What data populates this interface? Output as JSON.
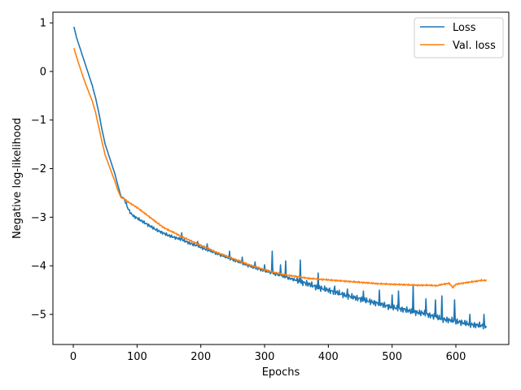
{
  "chart_data": {
    "type": "line",
    "title": "",
    "xlabel": "Epochs",
    "ylabel": "Negative log-likelihood",
    "xlim": [
      -32,
      683
    ],
    "ylim": [
      -5.62,
      1.22
    ],
    "xticks": [
      0,
      100,
      200,
      300,
      400,
      500,
      600
    ],
    "yticks": [
      1,
      0,
      -1,
      -2,
      -3,
      -4,
      -5
    ],
    "grid": false,
    "legend_position": "top-right",
    "series": [
      {
        "name": "Loss",
        "color": "#1f77b4",
        "x": [
          1,
          5,
          10,
          15,
          20,
          25,
          30,
          35,
          40,
          45,
          50,
          55,
          60,
          65,
          70,
          75,
          78,
          80,
          85,
          90,
          95,
          100,
          110,
          120,
          130,
          140,
          150,
          160,
          170,
          180,
          190,
          200,
          210,
          220,
          230,
          240,
          250,
          260,
          270,
          280,
          290,
          300,
          310,
          320,
          330,
          340,
          350,
          360,
          370,
          380,
          390,
          400,
          410,
          420,
          430,
          440,
          450,
          460,
          470,
          480,
          490,
          500,
          510,
          520,
          530,
          540,
          550,
          560,
          570,
          580,
          590,
          600,
          610,
          620,
          630,
          640,
          648
        ],
        "y": [
          0.92,
          0.7,
          0.5,
          0.3,
          0.1,
          -0.1,
          -0.3,
          -0.55,
          -0.85,
          -1.2,
          -1.5,
          -1.7,
          -1.9,
          -2.1,
          -2.35,
          -2.58,
          -2.6,
          -2.62,
          -2.8,
          -2.92,
          -2.98,
          -3.02,
          -3.1,
          -3.18,
          -3.26,
          -3.32,
          -3.38,
          -3.42,
          -3.46,
          -3.52,
          -3.57,
          -3.62,
          -3.67,
          -3.72,
          -3.77,
          -3.82,
          -3.87,
          -3.92,
          -3.97,
          -4.02,
          -4.06,
          -4.1,
          -4.14,
          -4.18,
          -4.22,
          -4.26,
          -4.3,
          -4.34,
          -4.38,
          -4.43,
          -4.47,
          -4.5,
          -4.54,
          -4.58,
          -4.62,
          -4.65,
          -4.68,
          -4.72,
          -4.75,
          -4.78,
          -4.82,
          -4.85,
          -4.88,
          -4.9,
          -4.94,
          -4.96,
          -4.98,
          -5.02,
          -5.06,
          -5.1,
          -5.12,
          -5.14,
          -5.17,
          -5.2,
          -5.22,
          -5.23,
          -5.25
        ],
        "spikes": [
          [
            170,
            -3.32
          ],
          [
            195,
            -3.5
          ],
          [
            210,
            -3.55
          ],
          [
            245,
            -3.7
          ],
          [
            265,
            -3.82
          ],
          [
            285,
            -3.92
          ],
          [
            300,
            -3.98
          ],
          [
            312,
            -3.7
          ],
          [
            325,
            -3.98
          ],
          [
            333,
            -3.9
          ],
          [
            356,
            -3.88
          ],
          [
            384,
            -4.15
          ],
          [
            410,
            -4.42
          ],
          [
            430,
            -4.48
          ],
          [
            455,
            -4.52
          ],
          [
            480,
            -4.5
          ],
          [
            500,
            -4.6
          ],
          [
            510,
            -4.52
          ],
          [
            533,
            -4.4
          ],
          [
            553,
            -4.68
          ],
          [
            568,
            -4.7
          ],
          [
            578,
            -4.62
          ],
          [
            598,
            -4.7
          ],
          [
            622,
            -5.0
          ],
          [
            644,
            -5.0
          ]
        ]
      },
      {
        "name": "Val. loss",
        "color": "#ff7f0e",
        "x": [
          1,
          5,
          10,
          15,
          20,
          25,
          30,
          35,
          40,
          45,
          50,
          55,
          60,
          65,
          70,
          75,
          80,
          85,
          90,
          95,
          100,
          110,
          120,
          130,
          140,
          150,
          160,
          170,
          180,
          190,
          200,
          210,
          220,
          230,
          240,
          250,
          260,
          270,
          280,
          290,
          300,
          310,
          320,
          330,
          340,
          350,
          360,
          370,
          380,
          390,
          400,
          420,
          440,
          460,
          480,
          500,
          520,
          540,
          560,
          570,
          580,
          590,
          595,
          600,
          610,
          620,
          630,
          640,
          648
        ],
        "y": [
          0.48,
          0.3,
          0.1,
          -0.1,
          -0.28,
          -0.45,
          -0.62,
          -0.85,
          -1.15,
          -1.45,
          -1.72,
          -1.9,
          -2.08,
          -2.25,
          -2.45,
          -2.6,
          -2.62,
          -2.68,
          -2.72,
          -2.76,
          -2.8,
          -2.9,
          -3.0,
          -3.1,
          -3.2,
          -3.27,
          -3.33,
          -3.4,
          -3.46,
          -3.52,
          -3.58,
          -3.63,
          -3.7,
          -3.75,
          -3.8,
          -3.85,
          -3.9,
          -3.95,
          -4.0,
          -4.04,
          -4.08,
          -4.12,
          -4.15,
          -4.18,
          -4.2,
          -4.22,
          -4.24,
          -4.26,
          -4.27,
          -4.28,
          -4.29,
          -4.31,
          -4.33,
          -4.35,
          -4.37,
          -4.38,
          -4.39,
          -4.4,
          -4.4,
          -4.41,
          -4.38,
          -4.36,
          -4.45,
          -4.38,
          -4.36,
          -4.34,
          -4.32,
          -4.3,
          -4.3
        ]
      }
    ]
  }
}
